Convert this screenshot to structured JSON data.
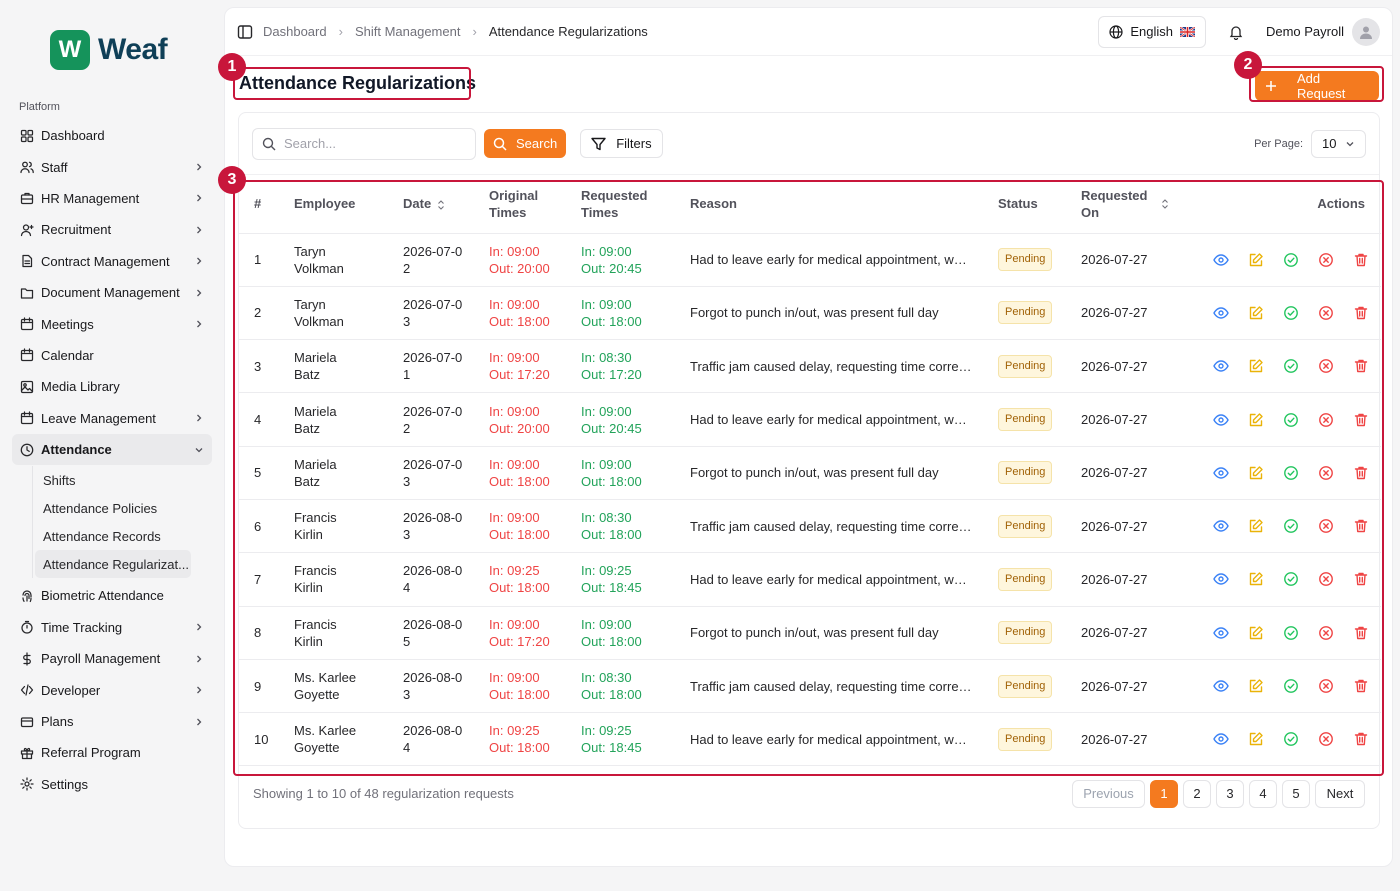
{
  "brand": {
    "name": "Weaf",
    "badge_letter": "W",
    "color": "#15935b"
  },
  "sidebar": {
    "section_label": "Platform",
    "items": [
      {
        "label": "Dashboard",
        "icon": "dashboard-grid-icon",
        "chevron": false
      },
      {
        "label": "Staff",
        "icon": "users-icon",
        "chevron": true
      },
      {
        "label": "HR Management",
        "icon": "briefcase-icon",
        "chevron": true
      },
      {
        "label": "Recruitment",
        "icon": "user-plus-icon",
        "chevron": true
      },
      {
        "label": "Contract Management",
        "icon": "file-text-icon",
        "chevron": true
      },
      {
        "label": "Document Management",
        "icon": "folder-icon",
        "chevron": true
      },
      {
        "label": "Meetings",
        "icon": "calendar-icon",
        "chevron": true
      },
      {
        "label": "Calendar",
        "icon": "calendar-icon",
        "chevron": false
      },
      {
        "label": "Media Library",
        "icon": "image-icon",
        "chevron": false
      },
      {
        "label": "Leave Management",
        "icon": "calendar-icon",
        "chevron": true
      },
      {
        "label": "Attendance",
        "icon": "clock-icon",
        "chevron": true,
        "expanded": true
      },
      {
        "label": "Biometric Attendance",
        "icon": "fingerprint-icon",
        "chevron": false
      },
      {
        "label": "Time Tracking",
        "icon": "timer-icon",
        "chevron": true
      },
      {
        "label": "Payroll Management",
        "icon": "dollar-icon",
        "chevron": true
      },
      {
        "label": "Developer",
        "icon": "code-icon",
        "chevron": true
      },
      {
        "label": "Plans",
        "icon": "credit-card-icon",
        "chevron": true
      },
      {
        "label": "Referral Program",
        "icon": "gift-icon",
        "chevron": false
      },
      {
        "label": "Settings",
        "icon": "gear-icon",
        "chevron": false
      }
    ],
    "attendance_sub": [
      "Shifts",
      "Attendance Policies",
      "Attendance Records",
      "Attendance Regularizat..."
    ]
  },
  "header": {
    "breadcrumbs": [
      "Dashboard",
      "Shift Management",
      "Attendance Regularizations"
    ],
    "language": "English",
    "user_name": "Demo Payroll"
  },
  "page": {
    "title": "Attendance Regularizations",
    "add_button": "Add Request",
    "search_placeholder": "Search...",
    "search_button": "Search",
    "filters_button": "Filters",
    "per_page_label": "Per Page:",
    "per_page_value": "10"
  },
  "table": {
    "columns": [
      "#",
      "Employee",
      "Date",
      "Original Times",
      "Requested Times",
      "Reason",
      "Status",
      "Requested On",
      "Actions"
    ],
    "rows": [
      {
        "n": "1",
        "employee": "Taryn Volkman",
        "date": "2026-07-02",
        "orig_in": "In: 09:00",
        "orig_out": "Out: 20:00",
        "req_in": "In: 09:00",
        "req_out": "Out: 20:45",
        "reason": "Had to leave early for medical appointment, wor...",
        "status": "Pending",
        "requested_on": "2026-07-27"
      },
      {
        "n": "2",
        "employee": "Taryn Volkman",
        "date": "2026-07-03",
        "orig_in": "In: 09:00",
        "orig_out": "Out: 18:00",
        "req_in": "In: 09:00",
        "req_out": "Out: 18:00",
        "reason": "Forgot to punch in/out, was present full day",
        "status": "Pending",
        "requested_on": "2026-07-27"
      },
      {
        "n": "3",
        "employee": "Mariela Batz",
        "date": "2026-07-01",
        "orig_in": "In: 09:00",
        "orig_out": "Out: 17:20",
        "req_in": "In: 08:30",
        "req_out": "Out: 17:20",
        "reason": "Traffic jam caused delay, requesting time correct...",
        "status": "Pending",
        "requested_on": "2026-07-27"
      },
      {
        "n": "4",
        "employee": "Mariela Batz",
        "date": "2026-07-02",
        "orig_in": "In: 09:00",
        "orig_out": "Out: 20:00",
        "req_in": "In: 09:00",
        "req_out": "Out: 20:45",
        "reason": "Had to leave early for medical appointment, wor...",
        "status": "Pending",
        "requested_on": "2026-07-27"
      },
      {
        "n": "5",
        "employee": "Mariela Batz",
        "date": "2026-07-03",
        "orig_in": "In: 09:00",
        "orig_out": "Out: 18:00",
        "req_in": "In: 09:00",
        "req_out": "Out: 18:00",
        "reason": "Forgot to punch in/out, was present full day",
        "status": "Pending",
        "requested_on": "2026-07-27"
      },
      {
        "n": "6",
        "employee": "Francis Kirlin",
        "date": "2026-08-03",
        "orig_in": "In: 09:00",
        "orig_out": "Out: 18:00",
        "req_in": "In: 08:30",
        "req_out": "Out: 18:00",
        "reason": "Traffic jam caused delay, requesting time correct...",
        "status": "Pending",
        "requested_on": "2026-07-27"
      },
      {
        "n": "7",
        "employee": "Francis Kirlin",
        "date": "2026-08-04",
        "orig_in": "In: 09:25",
        "orig_out": "Out: 18:00",
        "req_in": "In: 09:25",
        "req_out": "Out: 18:45",
        "reason": "Had to leave early for medical appointment, wor...",
        "status": "Pending",
        "requested_on": "2026-07-27"
      },
      {
        "n": "8",
        "employee": "Francis Kirlin",
        "date": "2026-08-05",
        "orig_in": "In: 09:00",
        "orig_out": "Out: 17:20",
        "req_in": "In: 09:00",
        "req_out": "Out: 18:00",
        "reason": "Forgot to punch in/out, was present full day",
        "status": "Pending",
        "requested_on": "2026-07-27"
      },
      {
        "n": "9",
        "employee": "Ms. Karlee Goyette",
        "date": "2026-08-03",
        "orig_in": "In: 09:00",
        "orig_out": "Out: 18:00",
        "req_in": "In: 08:30",
        "req_out": "Out: 18:00",
        "reason": "Traffic jam caused delay, requesting time correct...",
        "status": "Pending",
        "requested_on": "2026-07-27"
      },
      {
        "n": "10",
        "employee": "Ms. Karlee Goyette",
        "date": "2026-08-04",
        "orig_in": "In: 09:25",
        "orig_out": "Out: 18:00",
        "req_in": "In: 09:25",
        "req_out": "Out: 18:45",
        "reason": "Had to leave early for medical appointment, wor...",
        "status": "Pending",
        "requested_on": "2026-07-27"
      }
    ],
    "action_icons": [
      "eye-icon",
      "edit-icon",
      "approve-check-icon",
      "reject-x-icon",
      "trash-icon"
    ],
    "action_colors": {
      "view": "#3b82f6",
      "edit": "#eab308",
      "approve": "#22c55e",
      "reject": "#ef4444",
      "delete": "#ef4444"
    }
  },
  "footer": {
    "showing": "Showing 1 to 10 of 48 regularization requests",
    "previous": "Previous",
    "pages": [
      "1",
      "2",
      "3",
      "4",
      "5"
    ],
    "current_page": "1",
    "next": "Next"
  },
  "annotations": [
    "1",
    "2",
    "3"
  ],
  "colors": {
    "accent": "#f47a1f",
    "annotation": "#c8163b",
    "original_time": "#ef4444",
    "requested_time": "#22a35a"
  }
}
